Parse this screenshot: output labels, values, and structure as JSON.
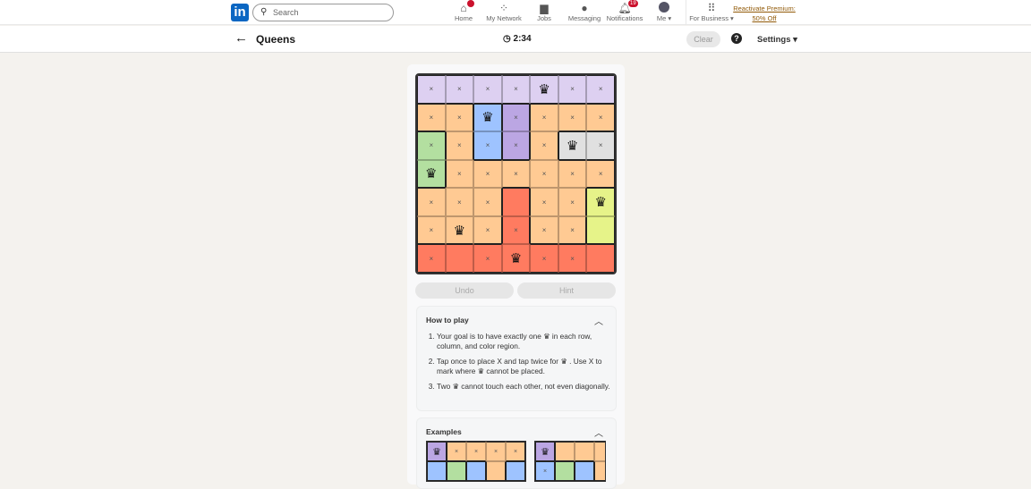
{
  "nav": {
    "logo": "in",
    "search_placeholder": "Search",
    "items": [
      {
        "label": "Home",
        "icon": "home-icon",
        "badge": ""
      },
      {
        "label": "My Network",
        "icon": "network-icon"
      },
      {
        "label": "Jobs",
        "icon": "briefcase-icon"
      },
      {
        "label": "Messaging",
        "icon": "message-icon"
      },
      {
        "label": "Notifications",
        "icon": "bell-icon",
        "badge": "19"
      },
      {
        "label": "Me ▾",
        "icon": "avatar"
      },
      {
        "label": "For Business ▾",
        "icon": "grid-icon"
      }
    ],
    "premium": "Reactivate Premium: 50% Off"
  },
  "game": {
    "back": "←",
    "title": "Queens",
    "timer": "2:34",
    "clear": "Clear",
    "help": "?",
    "settings": "Settings ▾"
  },
  "colors": {
    "P": "#ddd0f1",
    "p": "#bba6e3",
    "O": "#ffca93",
    "B": "#9ec3ff",
    "G": "#b3dfa0",
    "W": "#e0e0e0",
    "R": "#ff7b60",
    "Y": "#e6f389"
  },
  "board": {
    "regions": [
      "PPPPPPP",
      "OOBpOOO",
      "GOBpOWW",
      "GOOOOOO",
      "OOOROOY",
      "OOOROOY",
      "RRRRRRR"
    ],
    "marks": [
      "xxxxQxx",
      "xxQxxxx",
      "xxxxxQx",
      "Qxxxxxx",
      "xxx.xxQ",
      "xQxxxx.",
      "x.xQxx."
    ]
  },
  "buttons": {
    "undo": "Undo",
    "hint": "Hint"
  },
  "how_to_play": {
    "title": "How to play",
    "steps": [
      "Your goal is to have exactly one ♛ in each row, column, and color region.",
      "Tap once to place X and tap twice for ♛ . Use X to mark where ♛ cannot be placed.",
      "Two ♛ cannot touch each other, not even diagonally."
    ]
  },
  "examples": {
    "title": "Examples",
    "ex1": {
      "regions": [
        "pOOOO",
        "BGBOB"
      ],
      "marks": [
        "Qxxxx",
        "....."
      ]
    },
    "ex2": {
      "regions": [
        "pOOOO",
        "BGBOO"
      ],
      "marks": [
        "Q....",
        "x...."
      ]
    }
  }
}
